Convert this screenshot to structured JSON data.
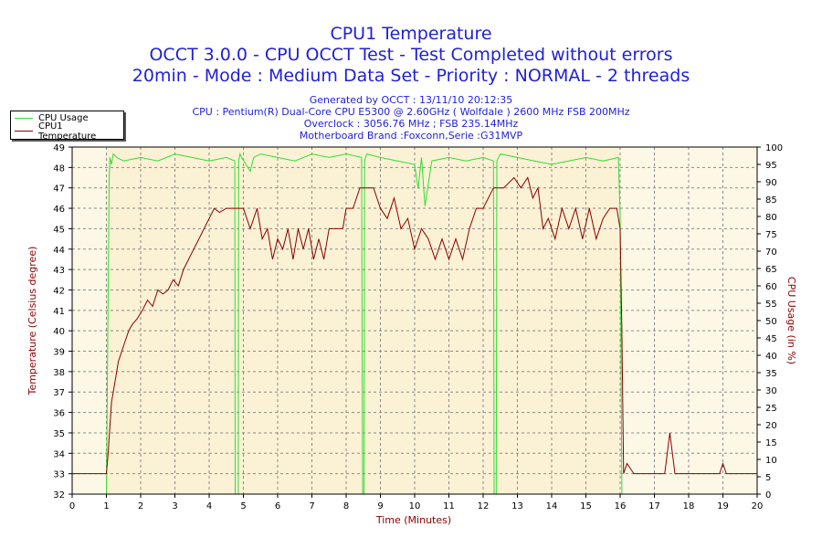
{
  "chart_data": {
    "type": "line",
    "title": "CPU1 Temperature",
    "subtitle_lines": [
      "OCCT 3.0.0 - CPU OCCT Test - Test Completed without errors",
      "20min - Mode : Medium Data Set - Priority : NORMAL - 2 threads"
    ],
    "info_lines": [
      "Generated by OCCT : 13/11/10 20:12:35",
      "CPU : Pentium(R) Dual-Core CPU E5300 @ 2.60GHz ( Wolfdale ) 2600 MHz FSB 200MHz",
      "Overclock : 3056.76 MHz ; FSB 235.14MHz",
      "Motherboard Brand :Foxconn,Serie :G31MVP"
    ],
    "xlabel": "Time (Minutes)",
    "ylabel": "Temperature (Celsius degree)",
    "y2label": "CPU Usage (in %)",
    "xlim": [
      0,
      20
    ],
    "ylim": [
      32,
      49
    ],
    "y2lim": [
      0,
      100
    ],
    "x_ticks": [
      0,
      1,
      2,
      3,
      4,
      5,
      6,
      7,
      8,
      9,
      10,
      11,
      12,
      13,
      14,
      15,
      16,
      17,
      18,
      19,
      20
    ],
    "y_ticks": [
      32,
      33,
      34,
      35,
      36,
      37,
      38,
      39,
      40,
      41,
      42,
      43,
      44,
      45,
      46,
      47,
      48,
      49
    ],
    "y2_ticks": [
      0,
      5,
      10,
      15,
      20,
      25,
      30,
      35,
      40,
      45,
      50,
      55,
      60,
      65,
      70,
      75,
      80,
      85,
      90,
      95,
      100
    ],
    "grid": true,
    "legend_position": "top-left",
    "shaded_region_x": [
      1,
      16
    ],
    "colors": {
      "cpu_usage": "#33dd33",
      "cpu1_temperature": "#8b0000",
      "plot_background": "#fdf8e6",
      "plot_background_active": "#fbf1d4",
      "title": "#1f1fd8",
      "axis_title": "#8b0000"
    },
    "series": [
      {
        "name": "CPU Usage",
        "axis": "right",
        "x": [
          0,
          0.98,
          1.0,
          1.08,
          1.1,
          1.15,
          1.2,
          1.3,
          1.5,
          2,
          2.5,
          3,
          3.5,
          4,
          4.5,
          4.75,
          4.76,
          4.8,
          4.85,
          4.86,
          4.9,
          4.95,
          5.2,
          5.3,
          5.5,
          6,
          6.5,
          7,
          7.5,
          8,
          8.45,
          8.48,
          8.52,
          8.54,
          8.6,
          9,
          9.5,
          10,
          10.1,
          10.2,
          10.3,
          10.5,
          11,
          11.5,
          12,
          12.3,
          12.32,
          12.38,
          12.4,
          12.5,
          13,
          13.5,
          14,
          14.5,
          15,
          15.5,
          15.95,
          16.0,
          16.05,
          16.1,
          17,
          18,
          19,
          20
        ],
        "y": [
          0,
          0,
          0,
          90,
          97,
          95,
          98,
          97,
          96,
          97,
          96,
          98,
          97,
          96,
          97,
          96,
          0,
          0,
          0,
          96,
          98,
          97,
          93,
          97,
          98,
          97,
          96,
          98,
          97,
          98,
          97,
          0,
          0,
          96,
          98,
          97,
          96,
          95,
          88,
          97,
          83,
          96,
          97,
          96,
          97,
          96,
          0,
          0,
          96,
          98,
          97,
          96,
          95,
          96,
          97,
          96,
          97,
          80,
          0,
          0,
          0,
          0,
          0,
          0
        ]
      },
      {
        "name": "CPU1 Temperature",
        "axis": "left",
        "x": [
          0,
          1.0,
          1.05,
          1.15,
          1.25,
          1.35,
          1.45,
          1.55,
          1.65,
          1.75,
          1.9,
          2.05,
          2.2,
          2.35,
          2.5,
          2.65,
          2.8,
          2.95,
          3.1,
          3.25,
          3.4,
          3.55,
          3.7,
          3.85,
          4.0,
          4.15,
          4.3,
          4.5,
          4.8,
          5.0,
          5.2,
          5.4,
          5.55,
          5.7,
          5.85,
          6.0,
          6.15,
          6.3,
          6.45,
          6.6,
          6.75,
          6.9,
          7.05,
          7.2,
          7.35,
          7.5,
          7.7,
          7.9,
          8.0,
          8.2,
          8.4,
          8.6,
          8.8,
          9.0,
          9.2,
          9.4,
          9.6,
          9.8,
          10.0,
          10.2,
          10.4,
          10.6,
          10.8,
          11.0,
          11.2,
          11.4,
          11.6,
          11.8,
          12.0,
          12.3,
          12.6,
          12.9,
          13.1,
          13.3,
          13.45,
          13.6,
          13.75,
          13.9,
          14.1,
          14.3,
          14.5,
          14.7,
          14.9,
          15.1,
          15.3,
          15.5,
          15.7,
          15.9,
          16.0,
          16.05,
          16.1,
          16.2,
          16.4,
          17.0,
          17.3,
          17.45,
          17.6,
          18.0,
          18.9,
          19.0,
          19.1,
          19.5,
          20.0
        ],
        "y": [
          33,
          33,
          34,
          36.5,
          37.5,
          38.5,
          39,
          39.5,
          40,
          40.3,
          40.6,
          41,
          41.5,
          41.2,
          42,
          41.8,
          42,
          42.5,
          42.2,
          43,
          43.5,
          44,
          44.5,
          45,
          45.5,
          46,
          45.8,
          46,
          46,
          46,
          45,
          46,
          44.5,
          45,
          43.5,
          44.5,
          44,
          45,
          43.5,
          45,
          44,
          45,
          43.5,
          44.5,
          43.5,
          45,
          45,
          45,
          46,
          46,
          47,
          47,
          47,
          46,
          45.5,
          46.5,
          45,
          45.5,
          44,
          45,
          44.5,
          43.5,
          44.5,
          43.5,
          44.5,
          43.5,
          45,
          46,
          46,
          47,
          47,
          47.5,
          47,
          47.5,
          46.5,
          47,
          45,
          45.5,
          44.5,
          46,
          45,
          46,
          44.5,
          46,
          44.5,
          45.5,
          46,
          46,
          45,
          40,
          33,
          33.5,
          33,
          33,
          33,
          35,
          33,
          33,
          33,
          33.5,
          33,
          33,
          33
        ]
      }
    ]
  }
}
